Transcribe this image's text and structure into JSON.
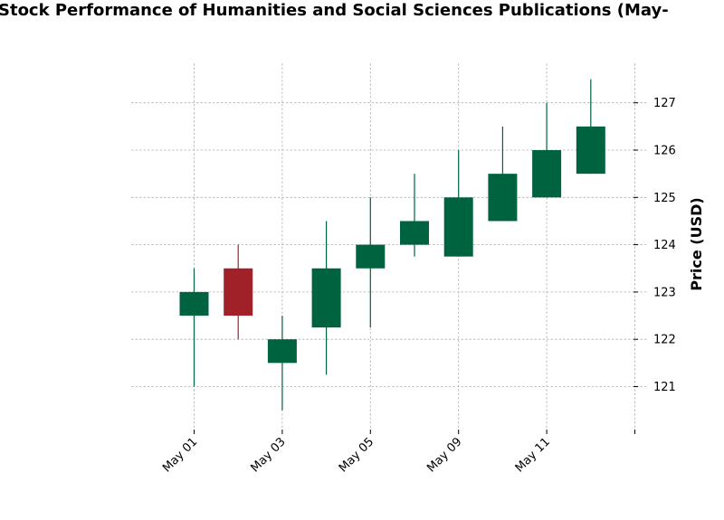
{
  "chart_data": {
    "type": "candlestick",
    "title": "Stock Performance of Humanities and Social Sciences Publications (May-",
    "xlabel": "",
    "ylabel": "Price (USD)",
    "ylim": [
      120.2,
      127.8
    ],
    "y_ticks": [
      121,
      122,
      123,
      124,
      125,
      126,
      127
    ],
    "x_tick_labels": [
      "May 01",
      "May 03",
      "May 05",
      "May 09",
      "May 11",
      ""
    ],
    "grid": true,
    "colors": {
      "up": "#006340",
      "down": "#a02128"
    },
    "candles": [
      {
        "open": 122.5,
        "high": 123.5,
        "low": 121.0,
        "close": 123.0
      },
      {
        "open": 123.5,
        "high": 124.0,
        "low": 122.0,
        "close": 122.5
      },
      {
        "open": 121.5,
        "high": 122.5,
        "low": 120.5,
        "close": 122.0
      },
      {
        "open": 122.25,
        "high": 124.5,
        "low": 121.25,
        "close": 123.5
      },
      {
        "open": 123.5,
        "high": 125.0,
        "low": 122.25,
        "close": 124.0
      },
      {
        "open": 124.0,
        "high": 125.5,
        "low": 123.75,
        "close": 124.5
      },
      {
        "open": 123.75,
        "high": 126.0,
        "low": 123.75,
        "close": 125.0
      },
      {
        "open": 124.5,
        "high": 126.5,
        "low": 124.5,
        "close": 125.5
      },
      {
        "open": 125.0,
        "high": 127.0,
        "low": 125.0,
        "close": 126.0
      },
      {
        "open": 125.5,
        "high": 127.5,
        "low": 125.5,
        "close": 126.5
      }
    ]
  }
}
